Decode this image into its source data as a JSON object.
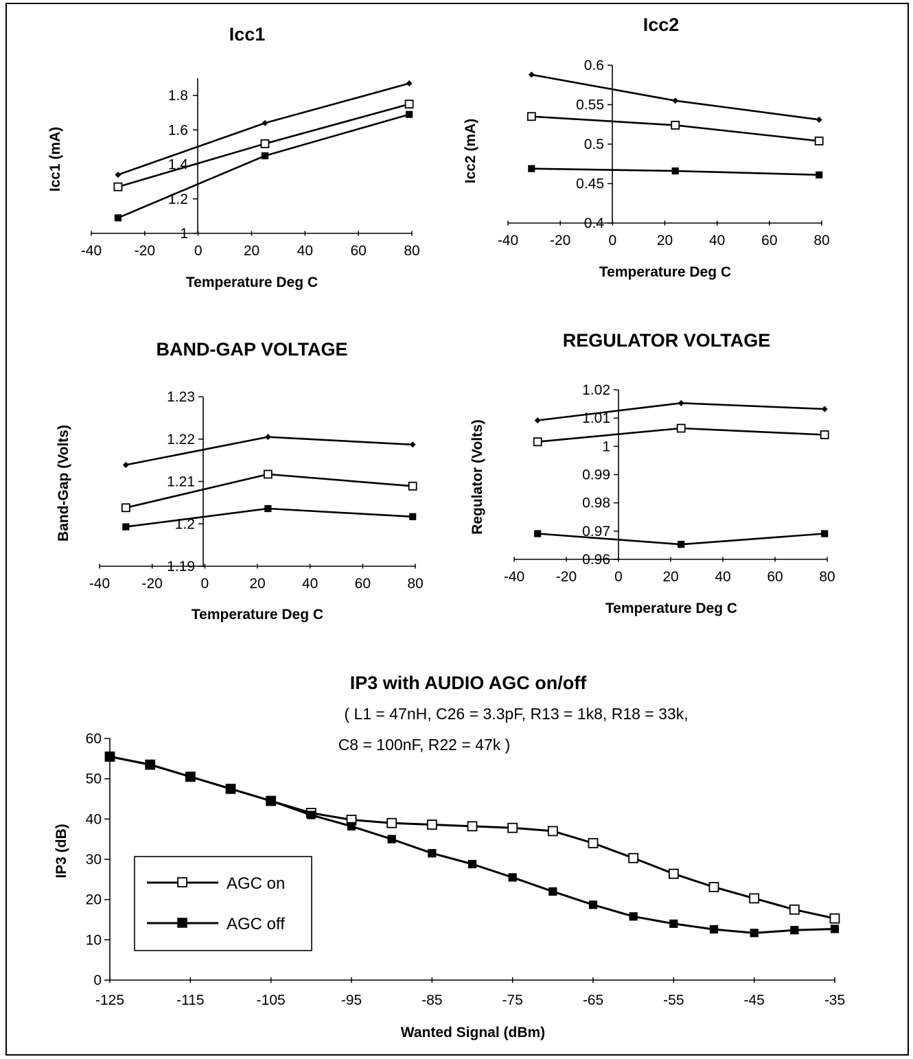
{
  "chart_data": [
    {
      "id": "icc1",
      "type": "line",
      "title": "Icc1",
      "xlabel": "Temperature Deg C",
      "ylabel": "Icc1 (mA)",
      "xlim": [
        -40,
        80
      ],
      "ylim": [
        1,
        1.9
      ],
      "xticks": [
        "-40",
        "-20",
        "0",
        "20",
        "40",
        "60",
        "80"
      ],
      "yticks": [
        "1",
        "1.2",
        "1.4",
        "1.6",
        "1.8"
      ],
      "x": [
        -30,
        25,
        79
      ],
      "series": [
        {
          "marker": "diamond",
          "values": [
            1.34,
            1.64,
            1.87
          ]
        },
        {
          "marker": "open-square",
          "values": [
            1.27,
            1.52,
            1.75
          ]
        },
        {
          "marker": "filled-square",
          "values": [
            1.09,
            1.45,
            1.69
          ]
        }
      ]
    },
    {
      "id": "icc2",
      "type": "line",
      "title": "Icc2",
      "xlabel": "Temperature Deg C",
      "ylabel": "Icc2 (mA)",
      "xlim": [
        -40,
        80
      ],
      "ylim": [
        0.4,
        0.6
      ],
      "xticks": [
        "-40",
        "-20",
        "0",
        "20",
        "40",
        "60",
        "80"
      ],
      "yticks": [
        "0.4",
        "0.45",
        "0.5",
        "0.55",
        "0.6"
      ],
      "x": [
        -31,
        24,
        79
      ],
      "series": [
        {
          "marker": "diamond",
          "values": [
            0.588,
            0.555,
            0.531
          ]
        },
        {
          "marker": "open-square",
          "values": [
            0.535,
            0.524,
            0.504
          ]
        },
        {
          "marker": "filled-square",
          "values": [
            0.469,
            0.466,
            0.461
          ]
        }
      ]
    },
    {
      "id": "bandgap",
      "type": "line",
      "title": "BAND-GAP VOLTAGE",
      "xlabel": "Temperature Deg C",
      "ylabel": "Band-Gap (Volts)",
      "xlim": [
        -40,
        80
      ],
      "ylim": [
        1.19,
        1.23
      ],
      "xticks": [
        "-40",
        "-20",
        "0",
        "20",
        "40",
        "60",
        "80"
      ],
      "yticks": [
        "1.19",
        "1.2",
        "1.21",
        "1.22",
        "1.23"
      ],
      "x": [
        -30,
        24,
        79
      ],
      "series": [
        {
          "marker": "diamond",
          "values": [
            1.2139,
            1.2205,
            1.2187
          ]
        },
        {
          "marker": "open-square",
          "values": [
            1.2038,
            1.2117,
            1.2089
          ]
        },
        {
          "marker": "filled-square",
          "values": [
            1.1993,
            1.2036,
            1.2017
          ]
        }
      ]
    },
    {
      "id": "regulator",
      "type": "line",
      "title": "REGULATOR VOLTAGE",
      "xlabel": "Temperature Deg C",
      "ylabel": "Regulator (Volts)",
      "xlim": [
        -40,
        80
      ],
      "ylim": [
        0.96,
        1.02
      ],
      "xticks": [
        "-40",
        "-20",
        "0",
        "20",
        "40",
        "60",
        "80"
      ],
      "yticks": [
        "0.96",
        "0.97",
        "0.98",
        "0.99",
        "1",
        "1.01",
        "1.02"
      ],
      "x": [
        -31,
        24,
        79
      ],
      "series": [
        {
          "marker": "diamond",
          "values": [
            1.0092,
            1.0153,
            1.0132
          ]
        },
        {
          "marker": "open-square",
          "values": [
            1.0016,
            1.0064,
            1.0041
          ]
        },
        {
          "marker": "filled-square",
          "values": [
            0.9691,
            0.9653,
            0.9691
          ]
        }
      ]
    },
    {
      "id": "ip3",
      "type": "line",
      "title": "IP3 with AUDIO AGC on/off",
      "subtitle": [
        "( L1 = 47nH, C26 = 3.3pF, R13 = 1k8, R18 = 33k,",
        "C8 = 100nF, R22 = 47k )"
      ],
      "xlabel": "Wanted Signal (dBm)",
      "ylabel": "IP3 (dB)",
      "xlim": [
        -125,
        -35
      ],
      "ylim": [
        0,
        60
      ],
      "xticks": [
        "-125",
        "-115",
        "-105",
        "-95",
        "-85",
        "-75",
        "-65",
        "-55",
        "-45",
        "-35"
      ],
      "yticks": [
        "0",
        "10",
        "20",
        "30",
        "40",
        "50",
        "60"
      ],
      "x": [
        -125,
        -120,
        -115,
        -110,
        -105,
        -100,
        -95,
        -90,
        -85,
        -80,
        -75,
        -70,
        -65,
        -60,
        -55,
        -50,
        -45,
        -40,
        -35
      ],
      "legend": "bottom-left",
      "series": [
        {
          "name": "AGC on",
          "marker": "open-square",
          "values": [
            55.5,
            53.5,
            50.5,
            47.5,
            44.5,
            41.5,
            39.8,
            39.0,
            38.6,
            38.2,
            37.8,
            37.0,
            34.0,
            30.3,
            26.4,
            23.1,
            20.3,
            17.5,
            15.3
          ]
        },
        {
          "name": "AGC off",
          "marker": "filled-square",
          "values": [
            55.5,
            53.5,
            50.5,
            47.5,
            44.5,
            41.0,
            38.2,
            35.0,
            31.5,
            28.8,
            25.5,
            22.0,
            18.7,
            15.8,
            14.0,
            12.6,
            11.7,
            12.4,
            12.7
          ]
        }
      ]
    }
  ]
}
